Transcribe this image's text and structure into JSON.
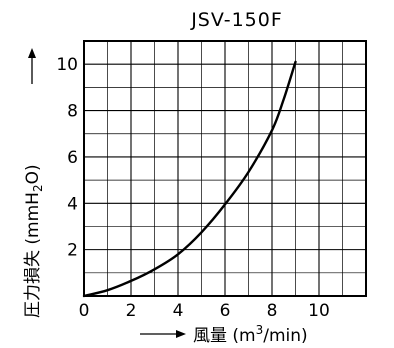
{
  "chart_data": {
    "type": "line",
    "title": "JSV-150F",
    "xlabel": {
      "prefix": "風量 (m",
      "sup": "3",
      "slash": "/",
      "suffix": "min)"
    },
    "ylabel": {
      "prefix": "圧力損失 (mmH",
      "sub": "2",
      "suffix": "O)"
    },
    "xlim": [
      0,
      12
    ],
    "ylim": [
      0,
      11
    ],
    "xticks": [
      0,
      2,
      4,
      6,
      8,
      10
    ],
    "yticks": [
      2,
      4,
      6,
      8,
      10
    ],
    "grid": true,
    "series": [
      {
        "x": [
          0,
          1,
          2,
          3,
          4,
          5,
          6,
          7,
          8,
          8.5,
          9
        ],
        "values": [
          0,
          0.25,
          0.65,
          1.15,
          1.8,
          2.75,
          3.95,
          5.35,
          7.15,
          8.5,
          10.1
        ]
      }
    ]
  }
}
